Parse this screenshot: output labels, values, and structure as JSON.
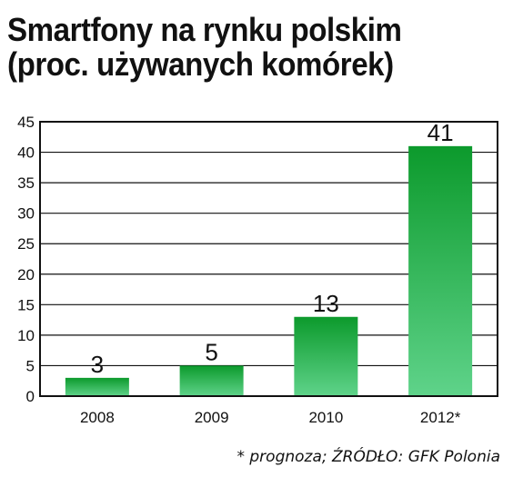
{
  "title_line1": "Smartfony na rynku polskim",
  "title_line2": "(proc. używanych komórek)",
  "source_note": "* prognoza; ŹRÓDŁO: GFK Polonia",
  "colors": {
    "bar_top": "#0c9a2c",
    "bar_bottom": "#5fd38a",
    "grid": "#111111"
  },
  "chart_data": {
    "type": "bar",
    "categories": [
      "2008",
      "2009",
      "2010",
      "2012*"
    ],
    "values": [
      3,
      5,
      13,
      41
    ],
    "data_labels": [
      "3",
      "5",
      "13",
      "41"
    ],
    "title": "Smartfony na rynku polskim (proc. używanych komórek)",
    "xlabel": "",
    "ylabel": "",
    "ylim": [
      0,
      45
    ],
    "yticks": [
      "0",
      "5",
      "10",
      "15",
      "20",
      "25",
      "30",
      "35",
      "40",
      "45"
    ],
    "grid": true,
    "legend": "none"
  }
}
